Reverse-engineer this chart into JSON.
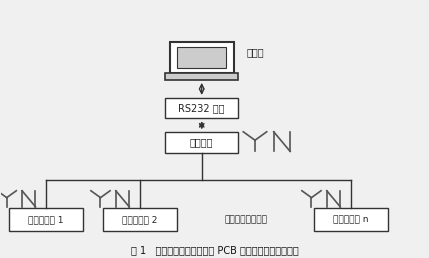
{
  "bg_color": "#f0f0f0",
  "title_text": "图 1   基于无线传感器网络的 PCB 电镀电流监测系统框架",
  "computer_label": "计算机",
  "rs232_label": "RS232 转接",
  "hub_label": "汇聚节点",
  "sensor_labels": [
    "传感器节点 1",
    "传感器节点 2",
    "传感器节点 n"
  ],
  "dots_label": "。。。。。。。。",
  "line_color": "#333333",
  "text_color": "#222222",
  "title_fontsize": 7.0,
  "label_fontsize": 7.0,
  "sensor_fontsize": 6.5
}
